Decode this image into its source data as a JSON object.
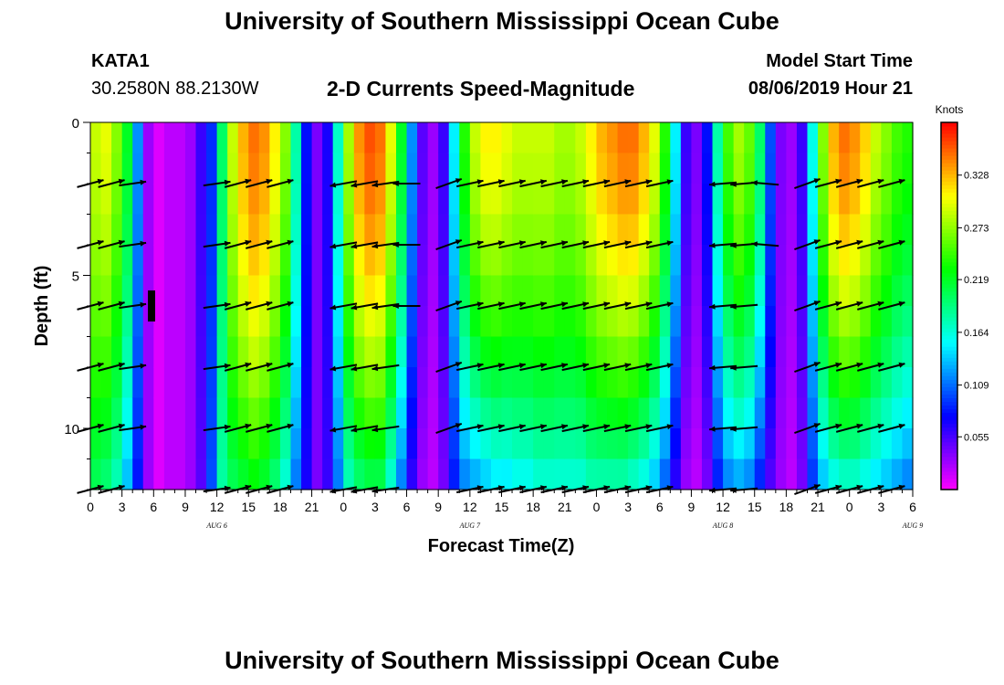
{
  "header": {
    "title": "University of Southern Mississippi Ocean Cube",
    "station": "KATA1",
    "coordinates": "30.2580N 88.2130W",
    "plot_title": "2-D Currents Speed-Magnitude",
    "model_start_label": "Model Start Time",
    "model_start_value": "08/06/2019 Hour 21"
  },
  "footer": {
    "title": "University of Southern Mississippi Ocean Cube"
  },
  "chart_data": {
    "type": "heatmap",
    "title": "2-D Currents Speed-Magnitude",
    "xlabel": "Forecast Time(Z)",
    "ylabel": "Depth (ft)",
    "x_range_hours": [
      0,
      78
    ],
    "x_ticks": [
      "0",
      "3",
      "6",
      "9",
      "12",
      "15",
      "18",
      "21",
      "0",
      "3",
      "6",
      "9",
      "12",
      "15",
      "18",
      "21",
      "0",
      "3",
      "6",
      "9",
      "12",
      "15",
      "18",
      "21",
      "0",
      "3",
      "6"
    ],
    "day_labels": [
      {
        "label": "AUG 6",
        "hour": 12
      },
      {
        "label": "AUG 7",
        "hour": 36
      },
      {
        "label": "AUG 8",
        "hour": 60
      },
      {
        "label": "AUG 9",
        "hour": 78
      }
    ],
    "y_range_ft": [
      0,
      12
    ],
    "y_ticks": [
      0,
      5,
      10
    ],
    "colorbar": {
      "unit": "Knots",
      "ticks": [
        0.055,
        0.109,
        0.164,
        0.219,
        0.273,
        0.328
      ],
      "range": [
        0.0,
        0.383
      ]
    },
    "arrow_depths_ft": [
      2,
      4,
      6,
      8,
      10,
      12
    ],
    "profiles": [
      {
        "hour": 0,
        "surface": 0.29,
        "bottom": 0.2,
        "dir": 15
      },
      {
        "hour": 1,
        "surface": 0.3,
        "bottom": 0.19,
        "dir": 15
      },
      {
        "hour": 2,
        "surface": 0.27,
        "bottom": 0.17,
        "dir": 15
      },
      {
        "hour": 3,
        "surface": 0.22,
        "bottom": 0.13,
        "dir": 12
      },
      {
        "hour": 4,
        "surface": 0.12,
        "bottom": 0.08,
        "dir": 8
      },
      {
        "hour": 5,
        "surface": 0.03,
        "bottom": 0.03,
        "dir": 5
      },
      {
        "hour": 6,
        "surface": 0.01,
        "bottom": 0.01,
        "dir": 0
      },
      {
        "hour": 7,
        "surface": 0.02,
        "bottom": 0.02,
        "dir": -5
      },
      {
        "hour": 8,
        "surface": 0.02,
        "bottom": 0.02,
        "dir": -8
      },
      {
        "hour": 9,
        "surface": 0.03,
        "bottom": 0.03,
        "dir": -8
      },
      {
        "hour": 10,
        "surface": 0.06,
        "bottom": 0.05,
        "dir": -5
      },
      {
        "hour": 11,
        "surface": 0.09,
        "bottom": 0.1,
        "dir": 0
      },
      {
        "hour": 12,
        "surface": 0.2,
        "bottom": 0.18,
        "dir": 8
      },
      {
        "hour": 13,
        "surface": 0.29,
        "bottom": 0.2,
        "dir": 12
      },
      {
        "hour": 14,
        "surface": 0.33,
        "bottom": 0.21,
        "dir": 15
      },
      {
        "hour": 15,
        "surface": 0.35,
        "bottom": 0.22,
        "dir": 15
      },
      {
        "hour": 16,
        "surface": 0.34,
        "bottom": 0.21,
        "dir": 15
      },
      {
        "hour": 17,
        "surface": 0.31,
        "bottom": 0.19,
        "dir": 15
      },
      {
        "hour": 18,
        "surface": 0.27,
        "bottom": 0.16,
        "dir": 15
      },
      {
        "hour": 19,
        "surface": 0.18,
        "bottom": 0.11,
        "dir": 12
      },
      {
        "hour": 20,
        "surface": 0.08,
        "bottom": 0.07,
        "dir": 160
      },
      {
        "hour": 21,
        "surface": 0.04,
        "bottom": 0.04,
        "dir": 170
      },
      {
        "hour": 22,
        "surface": 0.07,
        "bottom": 0.06,
        "dir": 175
      },
      {
        "hour": 23,
        "surface": 0.17,
        "bottom": 0.11,
        "dir": 185
      },
      {
        "hour": 24,
        "surface": 0.28,
        "bottom": 0.17,
        "dir": 190
      },
      {
        "hour": 25,
        "surface": 0.34,
        "bottom": 0.19,
        "dir": 190
      },
      {
        "hour": 26,
        "surface": 0.36,
        "bottom": 0.2,
        "dir": 190
      },
      {
        "hour": 27,
        "surface": 0.35,
        "bottom": 0.2,
        "dir": 190
      },
      {
        "hour": 28,
        "surface": 0.3,
        "bottom": 0.16,
        "dir": 188
      },
      {
        "hour": 29,
        "surface": 0.22,
        "bottom": 0.11,
        "dir": 185
      },
      {
        "hour": 30,
        "surface": 0.12,
        "bottom": 0.06,
        "dir": 180
      },
      {
        "hour": 31,
        "surface": 0.05,
        "bottom": 0.03,
        "dir": 170
      },
      {
        "hour": 32,
        "surface": 0.03,
        "bottom": 0.02,
        "dir": 160
      },
      {
        "hour": 33,
        "surface": 0.06,
        "bottom": 0.04,
        "dir": 60
      },
      {
        "hour": 34,
        "surface": 0.15,
        "bottom": 0.08,
        "dir": 20
      },
      {
        "hour": 35,
        "surface": 0.24,
        "bottom": 0.11,
        "dir": 15
      },
      {
        "hour": 36,
        "surface": 0.29,
        "bottom": 0.12,
        "dir": 12
      },
      {
        "hour": 37,
        "surface": 0.31,
        "bottom": 0.13,
        "dir": 12
      },
      {
        "hour": 38,
        "surface": 0.31,
        "bottom": 0.14,
        "dir": 12
      },
      {
        "hour": 39,
        "surface": 0.3,
        "bottom": 0.14,
        "dir": 12
      },
      {
        "hour": 40,
        "surface": 0.29,
        "bottom": 0.15,
        "dir": 12
      },
      {
        "hour": 41,
        "surface": 0.29,
        "bottom": 0.15,
        "dir": 12
      },
      {
        "hour": 42,
        "surface": 0.29,
        "bottom": 0.16,
        "dir": 12
      },
      {
        "hour": 43,
        "surface": 0.29,
        "bottom": 0.16,
        "dir": 12
      },
      {
        "hour": 44,
        "surface": 0.28,
        "bottom": 0.16,
        "dir": 12
      },
      {
        "hour": 45,
        "surface": 0.28,
        "bottom": 0.16,
        "dir": 12
      },
      {
        "hour": 46,
        "surface": 0.29,
        "bottom": 0.16,
        "dir": 12
      },
      {
        "hour": 47,
        "surface": 0.31,
        "bottom": 0.17,
        "dir": 12
      },
      {
        "hour": 48,
        "surface": 0.33,
        "bottom": 0.17,
        "dir": 12
      },
      {
        "hour": 49,
        "surface": 0.34,
        "bottom": 0.17,
        "dir": 12
      },
      {
        "hour": 50,
        "surface": 0.35,
        "bottom": 0.17,
        "dir": 12
      },
      {
        "hour": 51,
        "surface": 0.35,
        "bottom": 0.16,
        "dir": 12
      },
      {
        "hour": 52,
        "surface": 0.33,
        "bottom": 0.15,
        "dir": 12
      },
      {
        "hour": 53,
        "surface": 0.3,
        "bottom": 0.13,
        "dir": 12
      },
      {
        "hour": 54,
        "surface": 0.24,
        "bottom": 0.1,
        "dir": 12
      },
      {
        "hour": 55,
        "surface": 0.15,
        "bottom": 0.06,
        "dir": 20
      },
      {
        "hour": 56,
        "surface": 0.06,
        "bottom": 0.03,
        "dir": 40
      },
      {
        "hour": 57,
        "surface": 0.04,
        "bottom": 0.02,
        "dir": 60
      },
      {
        "hour": 58,
        "surface": 0.08,
        "bottom": 0.04,
        "dir": 180
      },
      {
        "hour": 59,
        "surface": 0.18,
        "bottom": 0.08,
        "dir": 185
      },
      {
        "hour": 60,
        "surface": 0.25,
        "bottom": 0.11,
        "dir": 185
      },
      {
        "hour": 61,
        "surface": 0.28,
        "bottom": 0.12,
        "dir": 185
      },
      {
        "hour": 62,
        "surface": 0.26,
        "bottom": 0.11,
        "dir": 185
      },
      {
        "hour": 63,
        "surface": 0.2,
        "bottom": 0.08,
        "dir": 180
      },
      {
        "hour": 64,
        "surface": 0.1,
        "bottom": 0.05,
        "dir": 175
      },
      {
        "hour": 65,
        "surface": 0.04,
        "bottom": 0.03,
        "dir": 170
      },
      {
        "hour": 66,
        "surface": 0.03,
        "bottom": 0.02,
        "dir": 160
      },
      {
        "hour": 67,
        "surface": 0.06,
        "bottom": 0.04,
        "dir": 60
      },
      {
        "hour": 68,
        "surface": 0.16,
        "bottom": 0.09,
        "dir": 20
      },
      {
        "hour": 69,
        "surface": 0.27,
        "bottom": 0.13,
        "dir": 15
      },
      {
        "hour": 70,
        "surface": 0.33,
        "bottom": 0.15,
        "dir": 15
      },
      {
        "hour": 71,
        "surface": 0.35,
        "bottom": 0.16,
        "dir": 15
      },
      {
        "hour": 72,
        "surface": 0.34,
        "bottom": 0.16,
        "dir": 15
      },
      {
        "hour": 73,
        "surface": 0.32,
        "bottom": 0.15,
        "dir": 15
      },
      {
        "hour": 74,
        "surface": 0.29,
        "bottom": 0.14,
        "dir": 15
      },
      {
        "hour": 75,
        "surface": 0.27,
        "bottom": 0.13,
        "dir": 15
      },
      {
        "hour": 76,
        "surface": 0.25,
        "bottom": 0.12,
        "dir": 15
      },
      {
        "hour": 77,
        "surface": 0.24,
        "bottom": 0.11,
        "dir": 15
      }
    ]
  }
}
